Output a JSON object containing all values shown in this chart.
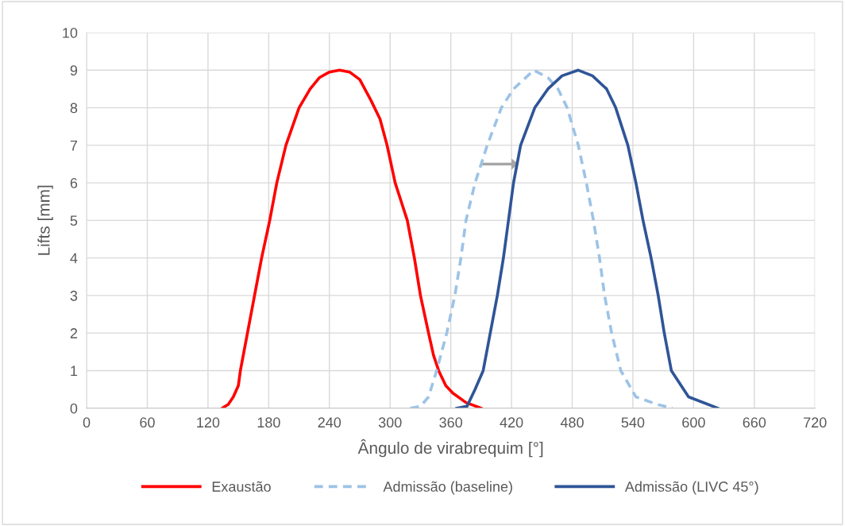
{
  "chart_data": {
    "type": "line",
    "xlabel": "Ângulo de virabrequim [°]",
    "ylabel": "Lifts [mm]",
    "xlim": [
      0,
      720
    ],
    "xticks": [
      0,
      60,
      120,
      180,
      240,
      300,
      360,
      420,
      480,
      540,
      600,
      660,
      720
    ],
    "ylim": [
      0,
      10
    ],
    "yticks": [
      0,
      1,
      2,
      3,
      4,
      5,
      6,
      7,
      8,
      9,
      10
    ],
    "grid": true,
    "legend": "bottom",
    "marker": "none",
    "series": [
      {
        "name": "Exaustão",
        "color": "#ff0000",
        "line_style": "solid",
        "x": [
          134,
          140,
          145,
          150,
          152,
          159,
          166,
          173,
          181,
          188,
          197,
          210,
          221,
          230,
          240,
          250,
          260,
          270,
          281,
          290,
          297,
          305,
          317,
          324,
          330,
          338,
          343,
          348,
          355,
          362,
          375,
          390
        ],
        "values": [
          0,
          0.1,
          0.3,
          0.6,
          1,
          2,
          3,
          4,
          5,
          6,
          7,
          8,
          8.5,
          8.8,
          8.95,
          9,
          8.95,
          8.75,
          8.2,
          7.7,
          7,
          6,
          5,
          4,
          3,
          2,
          1.4,
          1,
          0.6,
          0.4,
          0.15,
          0
        ]
      },
      {
        "name": "Admissão (baseline)",
        "color": "#9dc3e6",
        "line_style": "dashed",
        "x": [
          320,
          330,
          338,
          346,
          356,
          364,
          370,
          375,
          384,
          396,
          410,
          422,
          442,
          456,
          466,
          475,
          486,
          494,
          501,
          507,
          512,
          519,
          528,
          543,
          564,
          579
        ],
        "values": [
          0,
          0.05,
          0.3,
          1,
          2,
          3,
          4,
          5,
          6,
          7,
          8,
          8.5,
          9,
          8.8,
          8.5,
          8,
          7,
          6,
          5,
          4,
          3,
          2,
          1,
          0.3,
          0.1,
          0
        ]
      },
      {
        "name": "Admissão (LIVC 45°)",
        "color": "#2f5597",
        "line_style": "solid",
        "x": [
          366,
          376,
          384,
          392,
          399,
          406,
          412,
          417,
          422,
          429,
          443,
          456,
          470,
          486,
          500,
          514,
          523,
          535,
          543,
          550,
          558,
          565,
          571,
          578,
          595,
          624
        ],
        "values": [
          0,
          0.05,
          0.5,
          1,
          2,
          3,
          4,
          5,
          6,
          7,
          8,
          8.5,
          8.85,
          9,
          8.85,
          8.5,
          8,
          7,
          6,
          5,
          4,
          3,
          2,
          1,
          0.3,
          0
        ]
      }
    ]
  }
}
